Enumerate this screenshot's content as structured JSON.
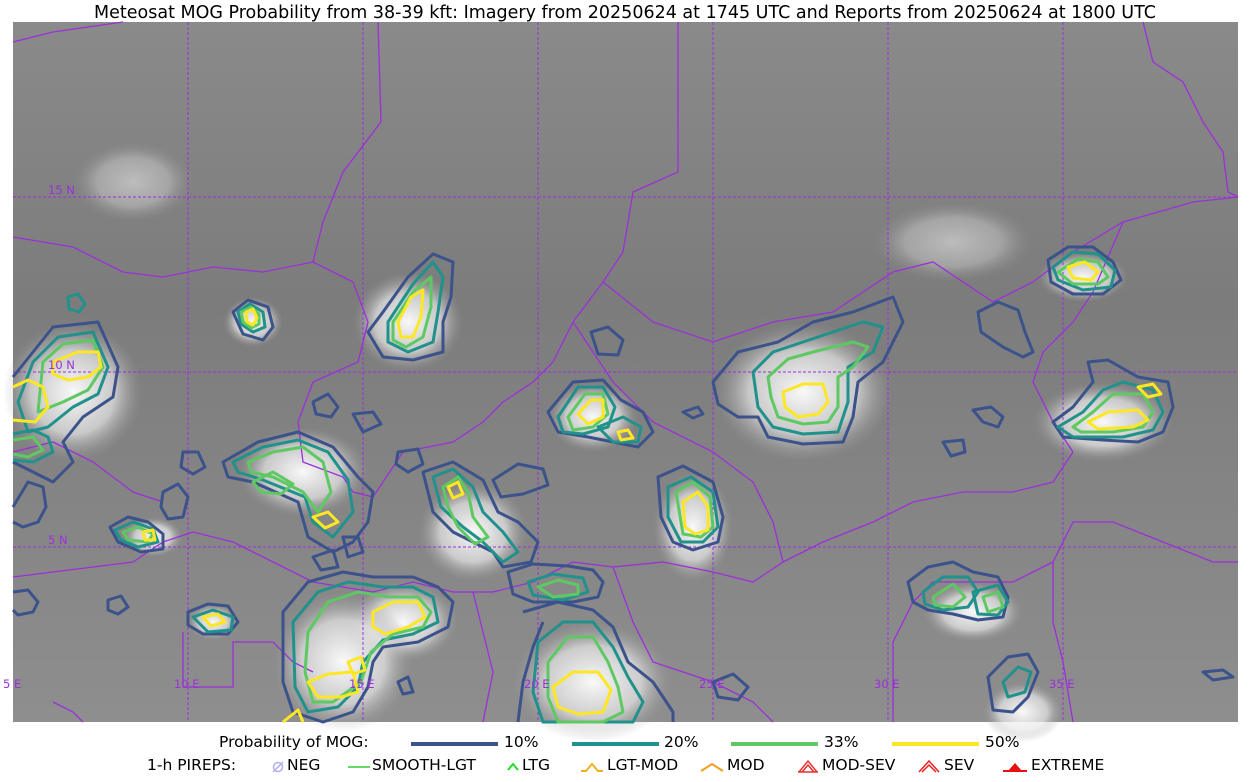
{
  "title": "Meteosat MOG Probability from 38-39 kft: Imagery from 20250624 at 1745 UTC and Reports from 20250624 at 1800 UTC",
  "map": {
    "lat_labels": [
      "15 N",
      "10 N",
      "5 N"
    ],
    "lon_labels": [
      "5 E",
      "10 E",
      "15 E",
      "20 E",
      "25 E",
      "30 E",
      "35 E"
    ],
    "grid_color": "#9b30d9",
    "border_color": "#9b30d9"
  },
  "legend": {
    "probability_label": "Probability of MOG:",
    "levels": [
      {
        "label": "10%",
        "color": "#3b528b"
      },
      {
        "label": "20%",
        "color": "#21918c"
      },
      {
        "label": "33%",
        "color": "#5ec962"
      },
      {
        "label": "50%",
        "color": "#fde725"
      }
    ],
    "pireps_label": "1-h PIREPS:",
    "pireps": [
      {
        "label": "NEG",
        "icon": "neg-icon",
        "color": "#b0b0f0"
      },
      {
        "label": "SMOOTH-LGT",
        "icon": "smooth-lgt-line-icon",
        "color": "#33cc33"
      },
      {
        "label": "LTG",
        "icon": "ltg-chevron-icon",
        "color": "#22dd22"
      },
      {
        "label": "LGT-MOD",
        "icon": "lgt-mod-chevron-icon",
        "color": "#f0b020"
      },
      {
        "label": "MOD",
        "icon": "mod-chevron-icon",
        "color": "#f0a020"
      },
      {
        "label": "MOD-SEV",
        "icon": "mod-sev-chevron-icon",
        "color": "#e83030"
      },
      {
        "label": "SEV",
        "icon": "sev-chevron-icon",
        "color": "#e82020"
      },
      {
        "label": "EXTREME",
        "icon": "extreme-chevron-icon",
        "color": "#e81010"
      }
    ]
  }
}
